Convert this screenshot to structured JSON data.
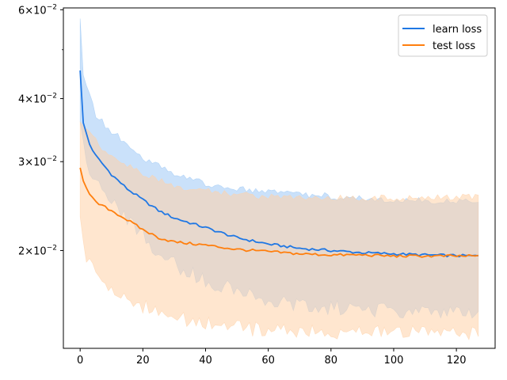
{
  "chart_data": {
    "type": "line",
    "title": "",
    "xlabel": "",
    "ylabel": "",
    "x_range": [
      0,
      127
    ],
    "xlim": [
      -5.35,
      132.35
    ],
    "ylim": [
      0.0128,
      0.0605
    ],
    "y_scale": "log",
    "grid": false,
    "legend": "top-right",
    "x_ticks": [
      0,
      20,
      40,
      60,
      80,
      100,
      120
    ],
    "x_tick_labels": [
      "0",
      "20",
      "40",
      "60",
      "80",
      "100",
      "120"
    ],
    "y_ticks": [
      0.02,
      0.03,
      0.04,
      0.06
    ],
    "y_tick_labels": [
      {
        "base": "2",
        "exp": "−2"
      },
      {
        "base": "3",
        "exp": "−2"
      },
      {
        "base": "4",
        "exp": "−2"
      },
      {
        "base": "6",
        "exp": "−2"
      }
    ],
    "y_minor_ticks": [
      0.05
    ],
    "series": [
      {
        "name": "learn loss",
        "color": "#1f77e4",
        "band_color": "#9ec9f5",
        "anchors": [
          [
            0,
            0.0455
          ],
          [
            1,
            0.0358
          ],
          [
            3,
            0.0325
          ],
          [
            5,
            0.0308
          ],
          [
            10,
            0.0283
          ],
          [
            15,
            0.0265
          ],
          [
            20,
            0.0252
          ],
          [
            25,
            0.024
          ],
          [
            30,
            0.0232
          ],
          [
            40,
            0.0222
          ],
          [
            50,
            0.0212
          ],
          [
            60,
            0.0206
          ],
          [
            70,
            0.0202
          ],
          [
            80,
            0.02
          ],
          [
            90,
            0.0198
          ],
          [
            100,
            0.0197
          ],
          [
            110,
            0.0196
          ],
          [
            127,
            0.0195
          ]
        ],
        "upper_anchors": [
          [
            0,
            0.0575
          ],
          [
            1,
            0.0445
          ],
          [
            5,
            0.037
          ],
          [
            10,
            0.0345
          ],
          [
            15,
            0.0325
          ],
          [
            20,
            0.0305
          ],
          [
            25,
            0.0295
          ],
          [
            30,
            0.0283
          ],
          [
            40,
            0.0272
          ],
          [
            50,
            0.0265
          ],
          [
            60,
            0.0262
          ],
          [
            70,
            0.0259
          ],
          [
            80,
            0.0256
          ],
          [
            90,
            0.0253
          ],
          [
            100,
            0.0252
          ],
          [
            110,
            0.0251
          ],
          [
            127,
            0.0251
          ]
        ],
        "lower_anchors": [
          [
            0,
            0.036
          ],
          [
            2,
            0.03
          ],
          [
            5,
            0.0272
          ],
          [
            10,
            0.025
          ],
          [
            15,
            0.0232
          ],
          [
            20,
            0.0215
          ],
          [
            25,
            0.0198
          ],
          [
            30,
            0.0188
          ],
          [
            40,
            0.0175
          ],
          [
            50,
            0.0166
          ],
          [
            60,
            0.0159
          ],
          [
            70,
            0.0156
          ],
          [
            80,
            0.0154
          ],
          [
            90,
            0.0153
          ],
          [
            100,
            0.0152
          ],
          [
            110,
            0.0152
          ],
          [
            127,
            0.0151
          ]
        ]
      },
      {
        "name": "test loss",
        "color": "#ff7f0e",
        "band_color": "#ffd1a8",
        "anchors": [
          [
            0,
            0.0292
          ],
          [
            1,
            0.0275
          ],
          [
            3,
            0.0258
          ],
          [
            5,
            0.0249
          ],
          [
            10,
            0.024
          ],
          [
            15,
            0.023
          ],
          [
            20,
            0.022
          ],
          [
            25,
            0.0212
          ],
          [
            30,
            0.0208
          ],
          [
            40,
            0.0205
          ],
          [
            50,
            0.0201
          ],
          [
            60,
            0.0199
          ],
          [
            70,
            0.0197
          ],
          [
            80,
            0.0196
          ],
          [
            90,
            0.0196
          ],
          [
            100,
            0.0195
          ],
          [
            110,
            0.0195
          ],
          [
            127,
            0.0195
          ]
        ],
        "upper_anchors": [
          [
            0,
            0.036
          ],
          [
            5,
            0.033
          ],
          [
            10,
            0.0305
          ],
          [
            20,
            0.0285
          ],
          [
            30,
            0.0268
          ],
          [
            40,
            0.0262
          ],
          [
            50,
            0.0258
          ],
          [
            60,
            0.0256
          ],
          [
            70,
            0.0255
          ],
          [
            80,
            0.0254
          ],
          [
            90,
            0.0254
          ],
          [
            100,
            0.0254
          ],
          [
            110,
            0.0254
          ],
          [
            127,
            0.0256
          ]
        ],
        "lower_anchors": [
          [
            0,
            0.0232
          ],
          [
            2,
            0.019
          ],
          [
            5,
            0.018
          ],
          [
            10,
            0.0168
          ],
          [
            20,
            0.0155
          ],
          [
            30,
            0.0148
          ],
          [
            40,
            0.0143
          ],
          [
            50,
            0.0141
          ],
          [
            60,
            0.0139
          ],
          [
            70,
            0.0138
          ],
          [
            80,
            0.0138
          ],
          [
            90,
            0.0138
          ],
          [
            100,
            0.0138
          ],
          [
            110,
            0.0137
          ],
          [
            127,
            0.0137
          ]
        ]
      }
    ]
  }
}
